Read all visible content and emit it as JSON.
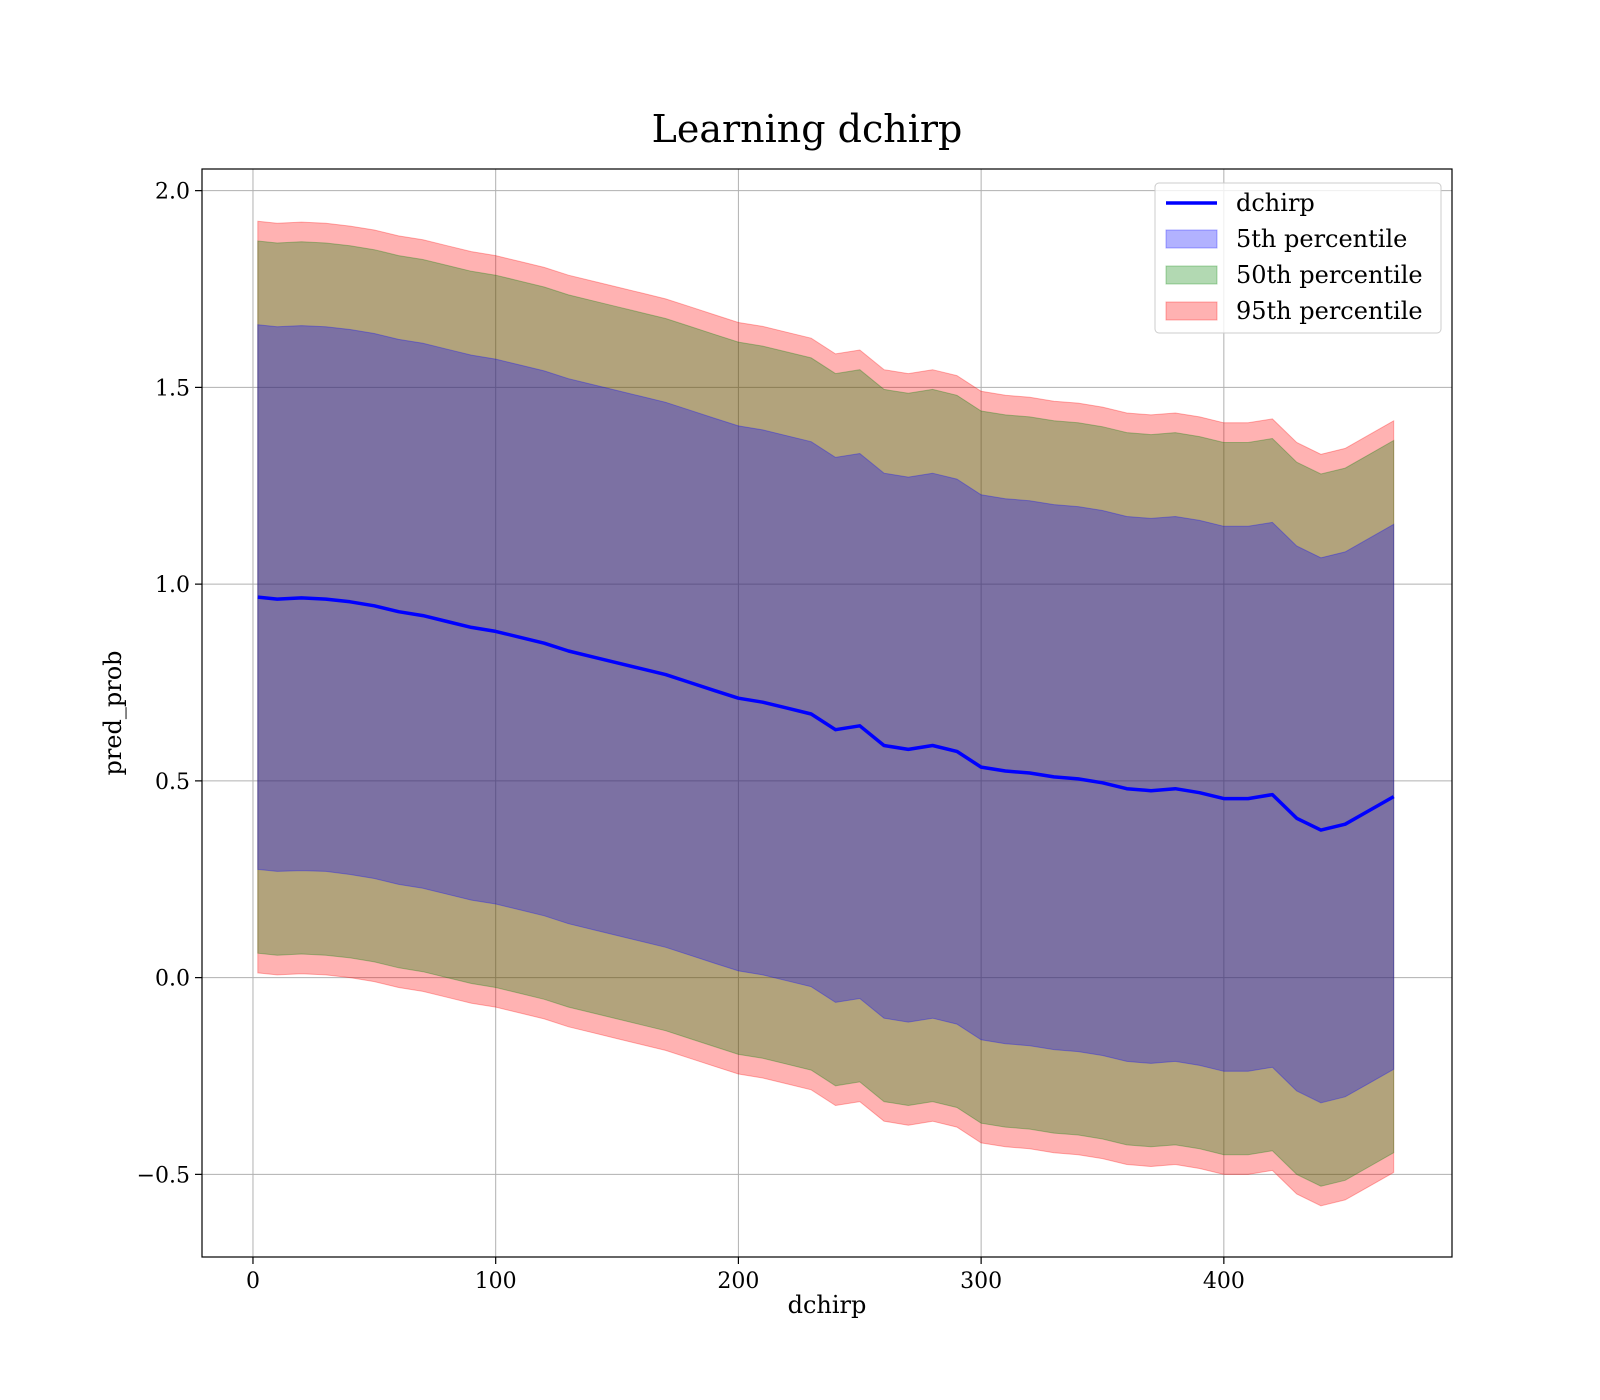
{
  "chart_data": {
    "type": "area",
    "title": "Learning dchirp",
    "xlabel": "dchirp",
    "ylabel": "pred_prob",
    "xlim": [
      -21,
      494
    ],
    "ylim": [
      -0.71,
      2.055
    ],
    "xticks": [
      0,
      100,
      200,
      300,
      400
    ],
    "xtick_labels": [
      "0",
      "100",
      "200",
      "300",
      "400"
    ],
    "yticks": [
      -0.5,
      0.0,
      0.5,
      1.0,
      1.5,
      2.0
    ],
    "ytick_labels": [
      "−0.5",
      "0.0",
      "0.5",
      "1.0",
      "1.5",
      "2.0"
    ],
    "grid": true,
    "legend_position": "top-right",
    "x": [
      2,
      10,
      20,
      30,
      40,
      50,
      60,
      70,
      80,
      90,
      100,
      110,
      120,
      130,
      140,
      150,
      160,
      170,
      180,
      190,
      200,
      210,
      220,
      230,
      240,
      250,
      260,
      270,
      280,
      290,
      300,
      310,
      320,
      330,
      340,
      350,
      360,
      370,
      380,
      390,
      400,
      410,
      420,
      430,
      440,
      450,
      460,
      470
    ],
    "line": {
      "name": "dchirp",
      "color": "#0000ff",
      "values": [
        0.967,
        0.962,
        0.965,
        0.962,
        0.955,
        0.945,
        0.93,
        0.92,
        0.905,
        0.89,
        0.88,
        0.865,
        0.85,
        0.83,
        0.815,
        0.8,
        0.785,
        0.77,
        0.75,
        0.73,
        0.71,
        0.7,
        0.685,
        0.67,
        0.63,
        0.64,
        0.59,
        0.58,
        0.59,
        0.575,
        0.535,
        0.525,
        0.52,
        0.51,
        0.505,
        0.495,
        0.48,
        0.475,
        0.48,
        0.47,
        0.455,
        0.455,
        0.465,
        0.405,
        0.375,
        0.39,
        0.425,
        0.46
      ]
    },
    "bands": [
      {
        "name": "5th percentile",
        "color": "#0000ff",
        "lower": [
          0.275,
          0.27,
          0.272,
          0.27,
          0.262,
          0.252,
          0.237,
          0.227,
          0.212,
          0.197,
          0.187,
          0.172,
          0.157,
          0.137,
          0.122,
          0.107,
          0.092,
          0.077,
          0.057,
          0.037,
          0.017,
          0.007,
          -0.008,
          -0.023,
          -0.063,
          -0.053,
          -0.103,
          -0.113,
          -0.103,
          -0.118,
          -0.158,
          -0.168,
          -0.173,
          -0.183,
          -0.188,
          -0.198,
          -0.213,
          -0.218,
          -0.213,
          -0.223,
          -0.238,
          -0.238,
          -0.228,
          -0.288,
          -0.318,
          -0.303,
          -0.268,
          -0.233
        ],
        "upper": [
          1.659,
          1.654,
          1.657,
          1.654,
          1.647,
          1.637,
          1.622,
          1.612,
          1.597,
          1.582,
          1.572,
          1.557,
          1.542,
          1.522,
          1.507,
          1.492,
          1.477,
          1.462,
          1.442,
          1.422,
          1.402,
          1.392,
          1.377,
          1.362,
          1.322,
          1.332,
          1.282,
          1.272,
          1.282,
          1.267,
          1.227,
          1.217,
          1.212,
          1.202,
          1.197,
          1.187,
          1.172,
          1.167,
          1.172,
          1.162,
          1.147,
          1.147,
          1.157,
          1.097,
          1.067,
          1.082,
          1.117,
          1.152
        ]
      },
      {
        "name": "50th percentile",
        "color": "#008000",
        "lower": [
          0.062,
          0.057,
          0.06,
          0.057,
          0.05,
          0.04,
          0.025,
          0.015,
          0.0,
          -0.015,
          -0.025,
          -0.04,
          -0.055,
          -0.075,
          -0.09,
          -0.105,
          -0.12,
          -0.135,
          -0.155,
          -0.175,
          -0.195,
          -0.205,
          -0.22,
          -0.235,
          -0.275,
          -0.265,
          -0.315,
          -0.325,
          -0.315,
          -0.33,
          -0.37,
          -0.38,
          -0.385,
          -0.395,
          -0.4,
          -0.41,
          -0.425,
          -0.43,
          -0.425,
          -0.435,
          -0.45,
          -0.45,
          -0.44,
          -0.5,
          -0.53,
          -0.515,
          -0.48,
          -0.445
        ],
        "upper": [
          1.872,
          1.867,
          1.87,
          1.867,
          1.86,
          1.85,
          1.835,
          1.825,
          1.81,
          1.795,
          1.785,
          1.77,
          1.755,
          1.735,
          1.72,
          1.705,
          1.69,
          1.675,
          1.655,
          1.635,
          1.615,
          1.605,
          1.59,
          1.575,
          1.535,
          1.545,
          1.495,
          1.485,
          1.495,
          1.48,
          1.44,
          1.43,
          1.425,
          1.415,
          1.41,
          1.4,
          1.385,
          1.38,
          1.385,
          1.375,
          1.36,
          1.36,
          1.37,
          1.31,
          1.28,
          1.295,
          1.33,
          1.365
        ]
      },
      {
        "name": "95th percentile",
        "color": "#ff0000",
        "lower": [
          0.012,
          0.007,
          0.01,
          0.007,
          0.0,
          -0.01,
          -0.025,
          -0.035,
          -0.05,
          -0.065,
          -0.075,
          -0.09,
          -0.105,
          -0.125,
          -0.14,
          -0.155,
          -0.17,
          -0.185,
          -0.205,
          -0.225,
          -0.245,
          -0.255,
          -0.27,
          -0.285,
          -0.325,
          -0.315,
          -0.365,
          -0.375,
          -0.365,
          -0.38,
          -0.42,
          -0.43,
          -0.435,
          -0.445,
          -0.45,
          -0.46,
          -0.475,
          -0.48,
          -0.475,
          -0.485,
          -0.5,
          -0.5,
          -0.49,
          -0.55,
          -0.58,
          -0.565,
          -0.53,
          -0.495
        ],
        "upper": [
          1.922,
          1.917,
          1.92,
          1.917,
          1.91,
          1.9,
          1.885,
          1.875,
          1.86,
          1.845,
          1.835,
          1.82,
          1.805,
          1.785,
          1.77,
          1.755,
          1.74,
          1.725,
          1.705,
          1.685,
          1.665,
          1.655,
          1.64,
          1.625,
          1.585,
          1.595,
          1.545,
          1.535,
          1.545,
          1.53,
          1.49,
          1.48,
          1.475,
          1.465,
          1.46,
          1.45,
          1.435,
          1.43,
          1.435,
          1.425,
          1.41,
          1.41,
          1.42,
          1.36,
          1.33,
          1.345,
          1.38,
          1.415
        ]
      }
    ],
    "legend": [
      "dchirp",
      "5th percentile",
      "50th percentile",
      "95th percentile"
    ]
  }
}
